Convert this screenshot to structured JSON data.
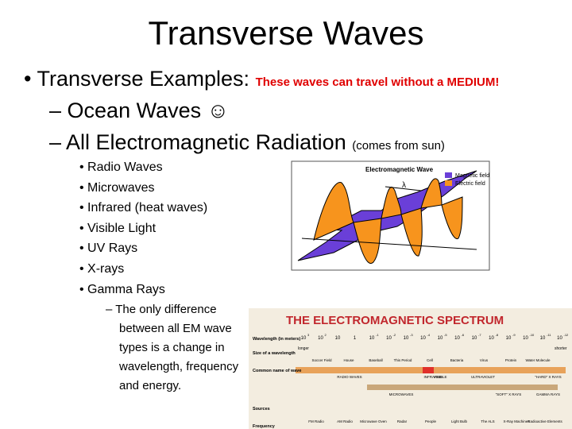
{
  "title": "Transverse Waves",
  "bullets": {
    "main": "Transverse Examples:",
    "note": "These waves can travel without a MEDIUM!",
    "sub": [
      {
        "text": "Ocean Waves ☺"
      },
      {
        "text": "All Electromagnetic Radiation",
        "note": "(comes from sun)"
      }
    ],
    "types": [
      "Radio Waves",
      "Microwaves",
      "Infrared (heat waves)",
      "Visible Light",
      "UV Rays",
      "X-rays",
      "Gamma Rays"
    ],
    "detail": [
      "The only difference",
      "between all EM wave",
      "types is a change in",
      "wavelength, frequency",
      "and energy."
    ]
  },
  "wave_diagram": {
    "title": "Electromagnetic Wave",
    "symbol": "λ",
    "legend": [
      {
        "name": "Magnetic field",
        "color": "#6a3fd8"
      },
      {
        "name": "Electric field",
        "color": "#f7941d"
      }
    ]
  },
  "spectrum": {
    "title": "THE ELECTROMAGNETIC SPECTRUM",
    "rows": [
      "Wavelength (in meters)",
      "Size of a wavelength",
      "Common name of wave",
      "Sources",
      "Frequency"
    ],
    "wavelengths": [
      {
        "base": "10",
        "exp": "3"
      },
      {
        "base": "10",
        "exp": "2"
      },
      {
        "base": "10"
      },
      {
        "base": "1"
      },
      {
        "base": "10",
        "exp": "-1"
      },
      {
        "base": "10",
        "exp": "-2"
      },
      {
        "base": "10",
        "exp": "-3"
      },
      {
        "base": "10",
        "exp": "-4"
      },
      {
        "base": "10",
        "exp": "-5"
      },
      {
        "base": "10",
        "exp": "-6"
      },
      {
        "base": "10",
        "exp": "-7"
      },
      {
        "base": "10",
        "exp": "-8"
      },
      {
        "base": "10",
        "exp": "-9"
      },
      {
        "base": "10",
        "exp": "-10"
      },
      {
        "base": "10",
        "exp": "-11"
      },
      {
        "base": "10",
        "exp": "-12"
      }
    ],
    "longer": "longer",
    "shorter": "shorter",
    "sizes": [
      "Soccer Field",
      "House",
      "Baseball",
      "This Period",
      "Cell",
      "Bacteria",
      "Virus",
      "Protein",
      "Water Molecule"
    ],
    "names_top": [
      "RADIO WAVES",
      "INFRARED",
      "VISIBLE",
      "ULTRAVIOLET",
      "\"HARD\" X RAYS"
    ],
    "names_bottom": [
      "MICROWAVES",
      "\"SOFT\" X RAYS",
      "GAMMA RAYS"
    ],
    "sources": [
      "FM Radio",
      "AM Radio",
      "Microwave Oven",
      "Radar",
      "People",
      "Light Bulb",
      "The ALS",
      "X-Ray Machines",
      "Radioactive Elements"
    ]
  }
}
